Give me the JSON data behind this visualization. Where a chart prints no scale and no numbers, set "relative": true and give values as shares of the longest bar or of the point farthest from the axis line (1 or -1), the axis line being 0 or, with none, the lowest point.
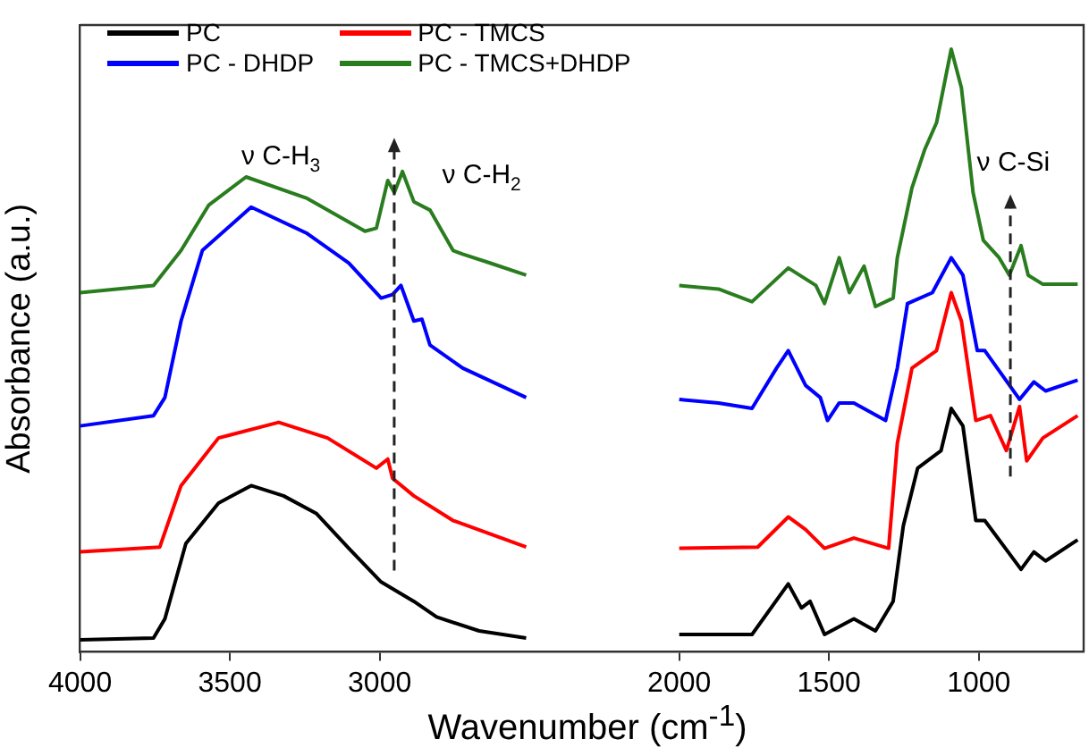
{
  "chart_data": {
    "type": "line",
    "ylabel": "Absorbance (a.u.)",
    "xlabel": "Wavenumber (cm$^{-1}$)",
    "relative": true,
    "xlim": [
      4000,
      650
    ],
    "xticks": [
      4000,
      3500,
      3000,
      2000,
      1500,
      1000
    ],
    "grid": false,
    "legend": "top left",
    "marker": "none",
    "line_style": "solid",
    "annotations": [
      "ν C-H$_{3}$",
      "ν C-H$_{2}$",
      "ν C-Si"
    ],
    "series": [
      {
        "name": "PC",
        "color": "#000000",
        "x": [
          4000,
          3755,
          3717,
          3647,
          3538,
          3429,
          3321,
          3212,
          3103,
          2995,
          2886,
          2810,
          2668,
          2511,
          2250,
          2000,
          1757,
          1636,
          1592,
          1563,
          1515,
          1417,
          1345,
          1286,
          1252,
          1204,
          1126,
          1092,
          1053,
          1010,
          980,
          859,
          816,
          777,
          670
        ],
        "values": [
          0.02,
          0.023,
          0.055,
          0.18,
          0.247,
          0.276,
          0.259,
          0.23,
          0.172,
          0.116,
          0.084,
          0.058,
          0.035,
          0.023,
          null,
          0.029,
          0.029,
          0.113,
          0.073,
          0.084,
          0.029,
          0.055,
          0.035,
          0.084,
          0.209,
          0.305,
          0.334,
          0.404,
          0.375,
          0.218,
          0.218,
          0.137,
          0.166,
          0.151,
          0.186
        ]
      },
      {
        "name": "PC - TMCS",
        "color": "#ff0000",
        "x": [
          4000,
          3734,
          3663,
          3538,
          3337,
          3174,
          3011,
          2973,
          2957,
          2886,
          2755,
          2511,
          2250,
          2000,
          1738,
          1636,
          1578,
          1515,
          1417,
          1301,
          1272,
          1223,
          1141,
          1092,
          1058,
          1010,
          961,
          908,
          864,
          840,
          786,
          670
        ],
        "values": [
          0.166,
          0.174,
          0.276,
          0.355,
          0.381,
          0.355,
          0.305,
          0.32,
          0.288,
          0.259,
          0.218,
          0.174,
          null,
          0.172,
          0.174,
          0.224,
          0.203,
          0.172,
          0.189,
          0.172,
          0.346,
          0.471,
          0.5,
          0.596,
          0.549,
          0.384,
          0.392,
          0.334,
          0.407,
          0.317,
          0.355,
          0.392
        ]
      },
      {
        "name": "PC - DHDP",
        "color": "#0000ff",
        "x": [
          4000,
          3755,
          3717,
          3663,
          3592,
          3429,
          3245,
          3103,
          2995,
          2957,
          2929,
          2886,
          2859,
          2832,
          2723,
          2511,
          2250,
          2000,
          1869,
          1757,
          1675,
          1636,
          1578,
          1529,
          1505,
          1466,
          1417,
          1311,
          1272,
          1238,
          1155,
          1092,
          1053,
          1005,
          980,
          864,
          816,
          777,
          670
        ],
        "values": [
          0.375,
          0.392,
          0.422,
          0.549,
          0.666,
          0.738,
          0.695,
          0.645,
          0.587,
          0.593,
          0.608,
          0.549,
          0.552,
          0.509,
          0.471,
          0.422,
          null,
          0.419,
          0.413,
          0.404,
          0.471,
          0.5,
          0.442,
          0.422,
          0.384,
          0.413,
          0.413,
          0.384,
          0.471,
          0.578,
          0.596,
          0.654,
          0.625,
          0.5,
          0.5,
          0.419,
          0.448,
          0.433,
          0.451
        ]
      },
      {
        "name": "PC - TMCS+DHDP",
        "color": "#2a7d1f",
        "x": [
          4000,
          3755,
          3663,
          3571,
          3446,
          3245,
          3049,
          3011,
          2973,
          2951,
          2924,
          2886,
          2832,
          2755,
          2723,
          2630,
          2511,
          2250,
          2000,
          1869,
          1757,
          1636,
          1544,
          1515,
          1466,
          1432,
          1383,
          1345,
          1286,
          1272,
          1223,
          1180,
          1141,
          1092,
          1058,
          1019,
          985,
          932,
          898,
          859,
          835,
          786,
          670
        ],
        "values": [
          0.596,
          0.608,
          0.666,
          0.741,
          0.788,
          0.753,
          0.698,
          0.703,
          0.782,
          0.762,
          0.797,
          0.747,
          0.733,
          0.666,
          0.66,
          0.645,
          0.625,
          null,
          0.608,
          0.602,
          0.581,
          0.637,
          0.608,
          0.578,
          0.654,
          0.596,
          0.64,
          0.573,
          0.587,
          0.654,
          0.77,
          0.834,
          0.878,
          1,
          0.936,
          0.762,
          0.683,
          0.654,
          0.625,
          0.674,
          0.625,
          0.61,
          0.61
        ]
      }
    ]
  }
}
